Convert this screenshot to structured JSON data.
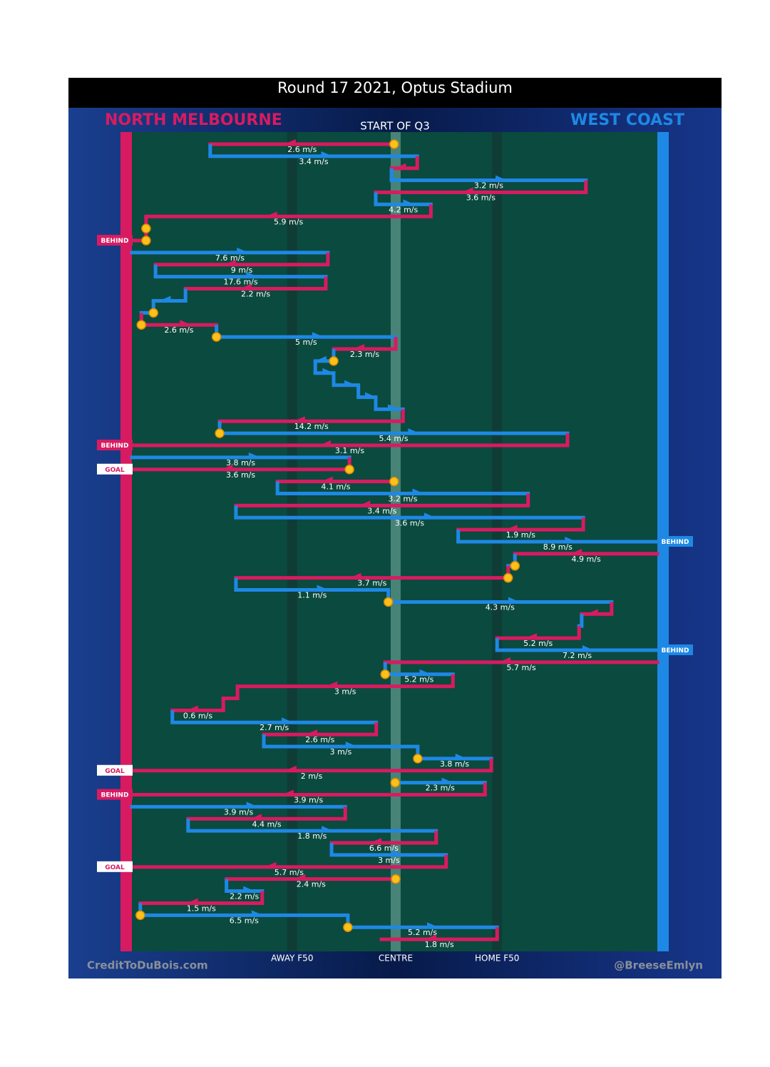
{
  "title": "Round 17 2021, Optus Stadium",
  "subtitle": "START OF Q3",
  "teams": [
    {
      "name": "NORTH MELBOURNE",
      "color": "#d81b60"
    },
    {
      "name": "WEST COAST",
      "color": "#1e88e5"
    }
  ],
  "field": {
    "xlim": [
      0,
      100
    ],
    "zones": [
      {
        "label": "AWAY F50",
        "at": 30.5
      },
      {
        "label": "CENTRE",
        "at": 50.2
      },
      {
        "label": "HOME F50",
        "at": 69.5
      }
    ]
  },
  "credits": {
    "left": "CreditToDuBois.com",
    "right": "@BreeseEmlyn"
  },
  "rows": [
    {
      "team": 0,
      "from": 49.9,
      "to": 14.9,
      "speed": "2.6 m/s",
      "marker": true
    },
    {
      "team": 1,
      "from": 14.9,
      "to": 54.3,
      "speed": "3.4 m/s"
    },
    {
      "team": 0,
      "from": 54.3,
      "to": 49.4
    },
    {
      "team": 1,
      "from": 49.4,
      "to": 86.4,
      "speed": "3.2 m/s"
    },
    {
      "team": 0,
      "from": 86.4,
      "to": 46.4,
      "speed": "3.6 m/s"
    },
    {
      "team": 1,
      "from": 46.4,
      "to": 56.9,
      "speed": "4.2 m/s"
    },
    {
      "team": 0,
      "from": 56.9,
      "to": 2.7,
      "speed": "5.9 m/s"
    },
    {
      "team": 0,
      "from": 2.7,
      "to": 2.7,
      "marker": true
    },
    {
      "team": 0,
      "from": 2.7,
      "to": 0,
      "marker": true,
      "result": "BEHIND"
    },
    {
      "team": 1,
      "from": 0,
      "to": 37.3,
      "speed": "7.6 m/s"
    },
    {
      "team": 0,
      "from": 37.3,
      "to": 4.5,
      "speed": "9 m/s"
    },
    {
      "team": 1,
      "from": 4.5,
      "to": 36.9,
      "speed": "17.6 m/s"
    },
    {
      "team": 0,
      "from": 36.9,
      "to": 10.2,
      "speed": "2.2 m/s"
    },
    {
      "team": 1,
      "from": 10.2,
      "to": 4.1
    },
    {
      "team": 1,
      "from": 4.1,
      "to": 1.8,
      "marker": true
    },
    {
      "team": 0,
      "from": 1.8,
      "to": 16.1,
      "speed": "2.6 m/s",
      "marker": true
    },
    {
      "team": 1,
      "from": 16.1,
      "to": 50.2,
      "speed": "5 m/s",
      "marker": true
    },
    {
      "team": 0,
      "from": 50.2,
      "to": 38.4,
      "speed": "2.3 m/s"
    },
    {
      "team": 1,
      "from": 38.4,
      "to": 34.9,
      "marker": true
    },
    {
      "team": 1,
      "from": 34.9,
      "to": 38.4
    },
    {
      "team": 1,
      "from": 38.4,
      "to": 43.1
    },
    {
      "team": 1,
      "from": 43.1,
      "to": 46.4
    },
    {
      "team": 1,
      "from": 46.4,
      "to": 51.6
    },
    {
      "team": 0,
      "from": 51.6,
      "to": 16.7,
      "speed": "14.2 m/s"
    },
    {
      "team": 1,
      "from": 16.7,
      "to": 82.9,
      "speed": "5.4 m/s",
      "marker": true
    },
    {
      "team": 0,
      "from": 82.9,
      "to": 0,
      "speed": "3.1 m/s",
      "result": "BEHIND"
    },
    {
      "team": 1,
      "from": 0,
      "to": 41.4,
      "speed": "3.8 m/s"
    },
    {
      "team": 0,
      "from": 41.4,
      "to": 0,
      "speed": "3.6 m/s",
      "marker": true,
      "result": "GOAL"
    },
    {
      "team": 0,
      "from": 49.9,
      "to": 27.7,
      "speed": "4.1 m/s",
      "marker": true
    },
    {
      "team": 1,
      "from": 27.7,
      "to": 75.4,
      "speed": "3.2 m/s"
    },
    {
      "team": 0,
      "from": 75.4,
      "to": 19.8,
      "speed": "3.4 m/s"
    },
    {
      "team": 1,
      "from": 19.8,
      "to": 85.9,
      "speed": "3.6 m/s"
    },
    {
      "team": 0,
      "from": 85.9,
      "to": 62.1,
      "speed": "1.9 m/s"
    },
    {
      "team": 1,
      "from": 62.1,
      "to": 100,
      "speed": "8.9 m/s",
      "result": "BEHIND"
    },
    {
      "team": 0,
      "from": 100,
      "to": 72.9,
      "speed": "4.9 m/s"
    },
    {
      "team": 1,
      "from": 72.9,
      "to": 71.6,
      "marker": true
    },
    {
      "team": 0,
      "from": 71.6,
      "to": 19.8,
      "speed": "3.7 m/s",
      "marker": true
    },
    {
      "team": 1,
      "from": 19.8,
      "to": 48.8,
      "speed": "1.1 m/s"
    },
    {
      "team": 1,
      "from": 48.8,
      "to": 91.3,
      "speed": "4.3 m/s",
      "marker": true
    },
    {
      "team": 0,
      "from": 91.3,
      "to": 85.6
    },
    {
      "team": 1,
      "from": 85.6,
      "to": 85.1
    },
    {
      "team": 0,
      "from": 85.1,
      "to": 69.5,
      "speed": "5.2 m/s"
    },
    {
      "team": 1,
      "from": 69.5,
      "to": 100,
      "speed": "7.2 m/s",
      "result": "BEHIND"
    },
    {
      "team": 0,
      "from": 100,
      "to": 48.2,
      "speed": "5.7 m/s"
    },
    {
      "team": 1,
      "from": 48.2,
      "to": 61.1,
      "speed": "5.2 m/s",
      "marker": true
    },
    {
      "team": 0,
      "from": 61.1,
      "to": 20.1,
      "speed": "3 m/s"
    },
    {
      "team": 0,
      "from": 20.1,
      "to": 17.4
    },
    {
      "team": 0,
      "from": 17.4,
      "to": 7.7,
      "speed": "0.6 m/s"
    },
    {
      "team": 1,
      "from": 7.7,
      "to": 46.5,
      "speed": "2.7 m/s"
    },
    {
      "team": 0,
      "from": 46.5,
      "to": 25.1,
      "speed": "2.6 m/s"
    },
    {
      "team": 1,
      "from": 25.1,
      "to": 54.4,
      "speed": "3 m/s"
    },
    {
      "team": 1,
      "from": 54.4,
      "to": 68.4,
      "speed": "3.8 m/s",
      "marker": true
    },
    {
      "team": 0,
      "from": 68.4,
      "to": 0,
      "speed": "2 m/s",
      "result": "GOAL"
    },
    {
      "team": 1,
      "from": 50.1,
      "to": 67.2,
      "speed": "2.3 m/s",
      "marker": true
    },
    {
      "team": 0,
      "from": 67.2,
      "to": 0,
      "speed": "3.9 m/s",
      "result": "BEHIND"
    },
    {
      "team": 1,
      "from": 0,
      "to": 40.6,
      "speed": "3.9 m/s"
    },
    {
      "team": 0,
      "from": 40.6,
      "to": 10.7,
      "speed": "4.4 m/s"
    },
    {
      "team": 1,
      "from": 10.7,
      "to": 57.9,
      "speed": "1.8 m/s"
    },
    {
      "team": 0,
      "from": 57.9,
      "to": 38,
      "speed": "6.6 m/s"
    },
    {
      "team": 1,
      "from": 38,
      "to": 59.8,
      "speed": "3 m/s"
    },
    {
      "team": 0,
      "from": 59.8,
      "to": 0,
      "speed": "5.7 m/s",
      "result": "GOAL"
    },
    {
      "team": 0,
      "from": 50.2,
      "to": 18,
      "speed": "2.4 m/s",
      "marker": true
    },
    {
      "team": 1,
      "from": 18,
      "to": 24.8,
      "speed": "2.2 m/s"
    },
    {
      "team": 0,
      "from": 24.8,
      "to": 1.6,
      "speed": "1.5 m/s"
    },
    {
      "team": 1,
      "from": 1.6,
      "to": 41.1,
      "speed": "6.5 m/s",
      "marker": true
    },
    {
      "team": 1,
      "from": 41.1,
      "to": 69.5,
      "speed": "5.2 m/s",
      "marker": true
    },
    {
      "team": 0,
      "from": 69.5,
      "to": 47.5,
      "speed": "1.8 m/s"
    }
  ]
}
